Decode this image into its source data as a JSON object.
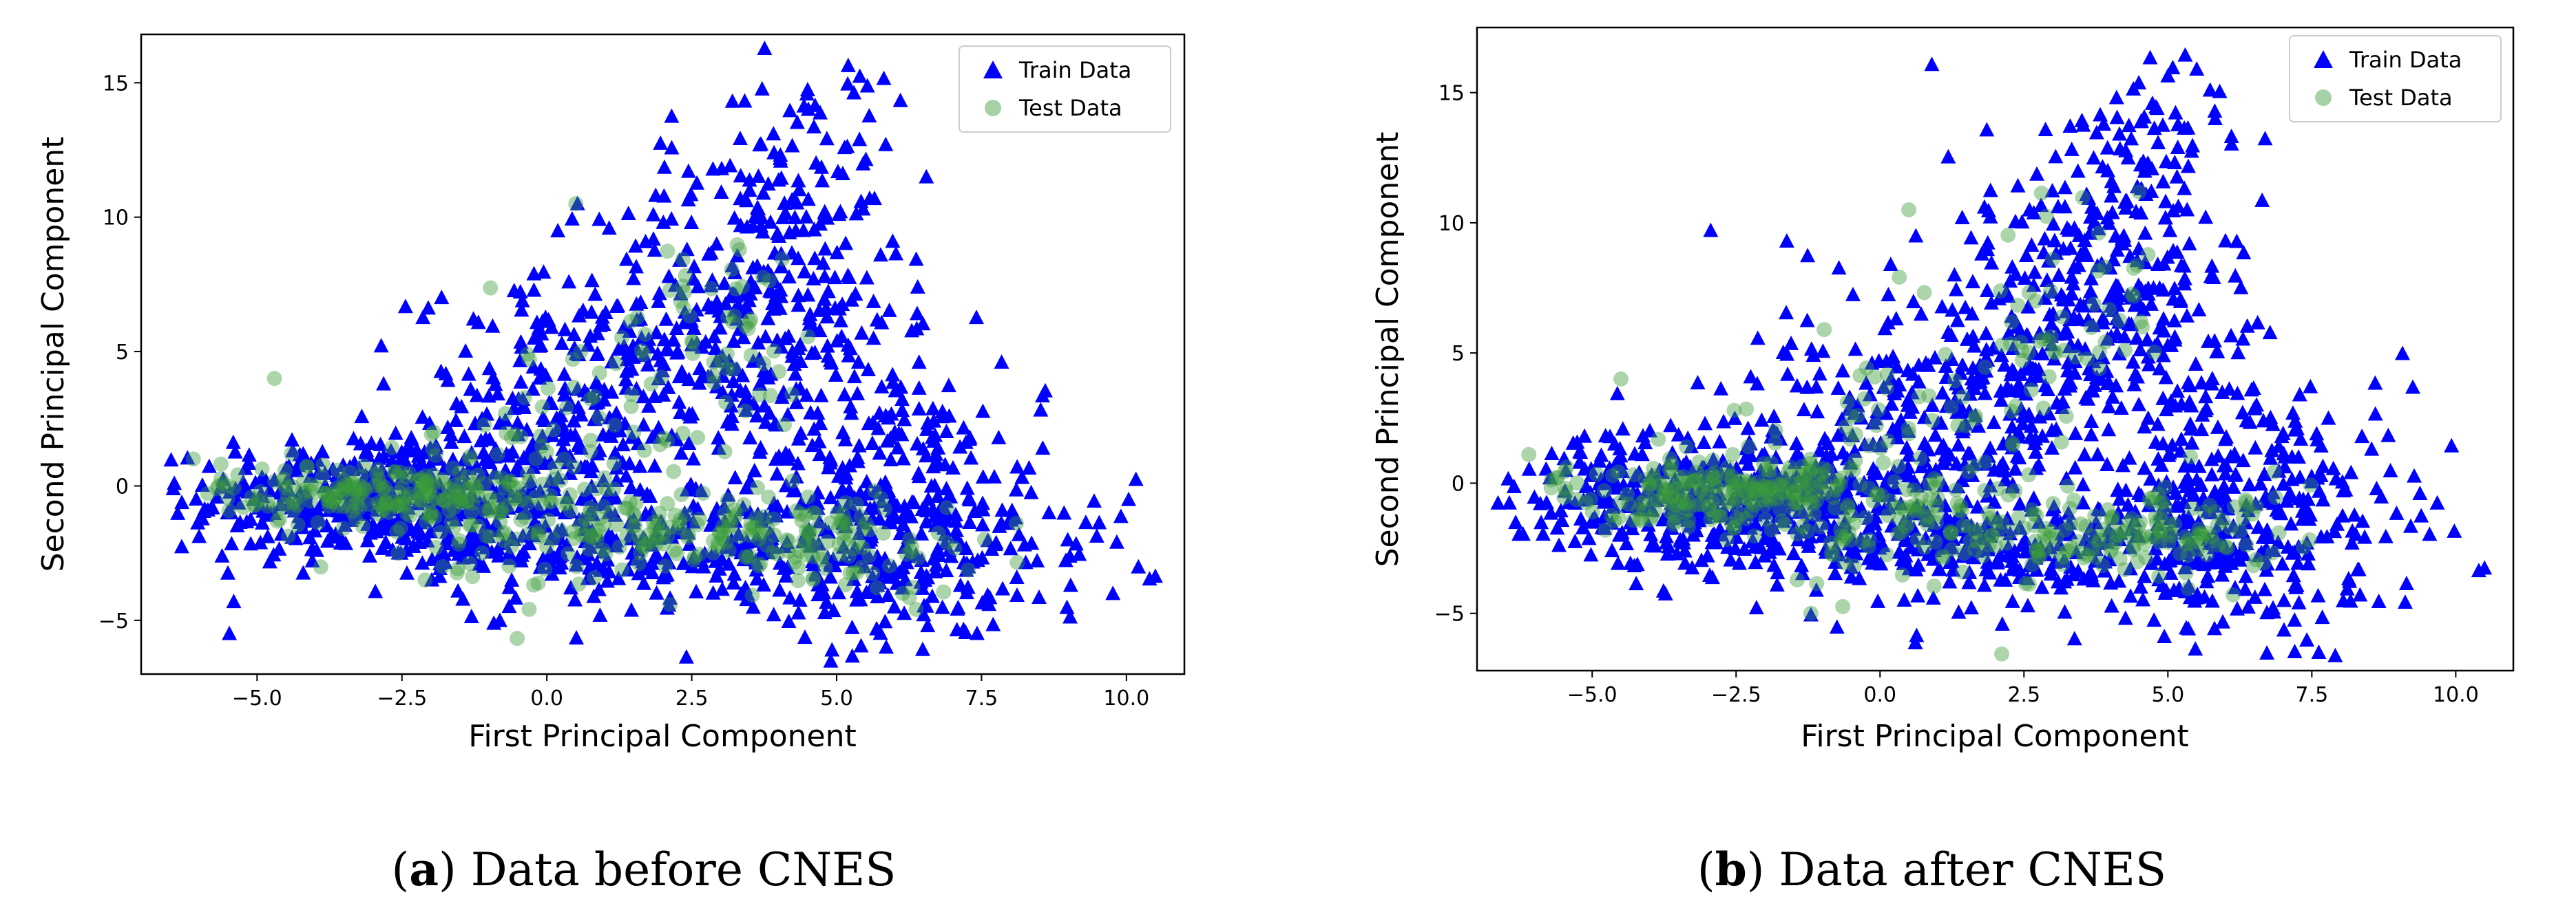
{
  "colors": {
    "train": "#0000ff",
    "test": "#3a9a3a",
    "frame": "#000000"
  },
  "chart_data": [
    {
      "type": "scatter",
      "panel_letter": "a",
      "caption": "Data before CNES",
      "xlabel": "First Principal Component",
      "ylabel": "Second Principal Component",
      "xlim": [
        -7.0,
        11.0
      ],
      "ylim": [
        -7.0,
        16.8
      ],
      "xticks": [
        -5.0,
        -2.5,
        0.0,
        2.5,
        5.0,
        7.5,
        10.0
      ],
      "xtick_labels": [
        "−5.0",
        "−2.5",
        "0.0",
        "2.5",
        "5.0",
        "7.5",
        "10.0"
      ],
      "yticks": [
        -5,
        0,
        5,
        10,
        15
      ],
      "ytick_labels": [
        "−5",
        "0",
        "5",
        "10",
        "15"
      ],
      "legend": [
        "Train Data",
        "Test Data"
      ],
      "legend_position": "top-right",
      "series": [
        {
          "name": "Train Data",
          "marker": "triangle",
          "clusters": [
            {
              "x": -3.0,
              "y": -0.5,
              "sx": 1.6,
              "sy": 1.2,
              "n": 420
            },
            {
              "x": 0.5,
              "y": 2.0,
              "sx": 1.4,
              "sy": 2.8,
              "n": 320
            },
            {
              "x": 3.5,
              "y": 6.5,
              "sx": 1.3,
              "sy": 3.0,
              "n": 280
            },
            {
              "x": 6.0,
              "y": -1.0,
              "sx": 1.3,
              "sy": 2.8,
              "n": 340
            },
            {
              "x": 2.0,
              "y": -2.5,
              "sx": 2.5,
              "sy": 1.0,
              "n": 240
            },
            {
              "x": 4.5,
              "y": 11.5,
              "sx": 0.8,
              "sy": 2.0,
              "n": 70
            },
            {
              "x": 8.5,
              "y": -2.0,
              "sx": 0.8,
              "sy": 1.5,
              "n": 30
            }
          ],
          "points": [
            {
              "x": -6.3,
              "y": -2.3
            },
            {
              "x": -6.2,
              "y": 1.0
            },
            {
              "x": 10.4,
              "y": -3.5
            },
            {
              "x": 10.5,
              "y": -3.4
            },
            {
              "x": 5.2,
              "y": 15.6
            },
            {
              "x": 5.4,
              "y": 15.2
            },
            {
              "x": 6.1,
              "y": 14.3
            },
            {
              "x": 9.3,
              "y": -1.4
            },
            {
              "x": 8.6,
              "y": 3.5
            },
            {
              "x": 4.5,
              "y": 14.7
            },
            {
              "x": 7.7,
              "y": -5.2
            },
            {
              "x": -1.3,
              "y": -4.9
            }
          ]
        },
        {
          "name": "Test Data",
          "marker": "circle",
          "clusters": [
            {
              "x": -2.8,
              "y": -0.3,
              "sx": 1.4,
              "sy": 0.6,
              "n": 220
            },
            {
              "x": 0.5,
              "y": 0.5,
              "sx": 1.3,
              "sy": 2.5,
              "n": 110
            },
            {
              "x": 2.0,
              "y": -1.8,
              "sx": 2.2,
              "sy": 0.7,
              "n": 120
            },
            {
              "x": 5.0,
              "y": -2.0,
              "sx": 1.2,
              "sy": 1.0,
              "n": 90
            },
            {
              "x": 3.0,
              "y": 6.0,
              "sx": 1.0,
              "sy": 2.0,
              "n": 50
            }
          ],
          "points": [
            {
              "x": -4.7,
              "y": 4.0
            },
            {
              "x": 0.5,
              "y": 10.5
            },
            {
              "x": -6.1,
              "y": 1.0
            },
            {
              "x": -5.5,
              "y": 0.0
            },
            {
              "x": -2.1,
              "y": -3.5
            },
            {
              "x": 1.5,
              "y": 2.0
            }
          ]
        }
      ]
    },
    {
      "type": "scatter",
      "panel_letter": "b",
      "caption": "Data after CNES",
      "xlabel": "First Principal Component",
      "ylabel": "Second Principal Component",
      "xlim": [
        -7.0,
        11.0
      ],
      "ylim": [
        -7.2,
        17.5
      ],
      "xticks": [
        -5.0,
        -2.5,
        0.0,
        2.5,
        5.0,
        7.5,
        10.0
      ],
      "xtick_labels": [
        "−5.0",
        "−2.5",
        "0.0",
        "2.5",
        "5.0",
        "7.5",
        "10.0"
      ],
      "yticks": [
        -5,
        0,
        5,
        10,
        15
      ],
      "ytick_labels": [
        "−5",
        "0",
        "5",
        "10",
        "15"
      ],
      "legend": [
        "Train Data",
        "Test Data"
      ],
      "legend_position": "top-right",
      "series": [
        {
          "name": "Train Data",
          "marker": "triangle",
          "clusters": [
            {
              "x": -3.0,
              "y": -0.5,
              "sx": 1.6,
              "sy": 1.2,
              "n": 420
            },
            {
              "x": 0.8,
              "y": 2.0,
              "sx": 1.5,
              "sy": 2.8,
              "n": 320
            },
            {
              "x": 3.7,
              "y": 7.0,
              "sx": 1.3,
              "sy": 3.0,
              "n": 290
            },
            {
              "x": 6.0,
              "y": -1.0,
              "sx": 1.3,
              "sy": 2.8,
              "n": 340
            },
            {
              "x": 2.0,
              "y": -2.5,
              "sx": 2.5,
              "sy": 1.0,
              "n": 240
            },
            {
              "x": 4.8,
              "y": 12.0,
              "sx": 0.8,
              "sy": 2.2,
              "n": 80
            },
            {
              "x": 8.5,
              "y": -2.0,
              "sx": 0.8,
              "sy": 1.5,
              "n": 30
            }
          ],
          "points": [
            {
              "x": -6.2,
              "y": -2.0
            },
            {
              "x": -5.8,
              "y": 0.5
            },
            {
              "x": 10.5,
              "y": -3.3
            },
            {
              "x": 10.4,
              "y": -3.4
            },
            {
              "x": 5.3,
              "y": 16.4
            },
            {
              "x": 5.0,
              "y": 15.6
            },
            {
              "x": 5.9,
              "y": 15.0
            },
            {
              "x": 4.4,
              "y": 15.1
            },
            {
              "x": 9.4,
              "y": -1.3
            },
            {
              "x": 8.6,
              "y": 3.8
            },
            {
              "x": 7.2,
              "y": -5.3
            },
            {
              "x": -1.2,
              "y": -5.1
            }
          ]
        },
        {
          "name": "Test Data",
          "marker": "circle",
          "clusters": [
            {
              "x": -2.8,
              "y": -0.3,
              "sx": 1.4,
              "sy": 0.6,
              "n": 220
            },
            {
              "x": 0.5,
              "y": 0.5,
              "sx": 1.3,
              "sy": 2.5,
              "n": 110
            },
            {
              "x": 2.0,
              "y": -1.8,
              "sx": 2.2,
              "sy": 0.7,
              "n": 120
            },
            {
              "x": 5.0,
              "y": -2.0,
              "sx": 1.2,
              "sy": 1.0,
              "n": 90
            },
            {
              "x": 3.2,
              "y": 6.5,
              "sx": 1.0,
              "sy": 2.0,
              "n": 50
            }
          ],
          "points": [
            {
              "x": -4.5,
              "y": 4.0
            },
            {
              "x": 0.5,
              "y": 10.5
            },
            {
              "x": -6.1,
              "y": 1.1
            },
            {
              "x": -5.6,
              "y": 0.2
            },
            {
              "x": -1.2,
              "y": -5.0
            },
            {
              "x": 1.5,
              "y": 2.2
            }
          ]
        }
      ]
    }
  ]
}
